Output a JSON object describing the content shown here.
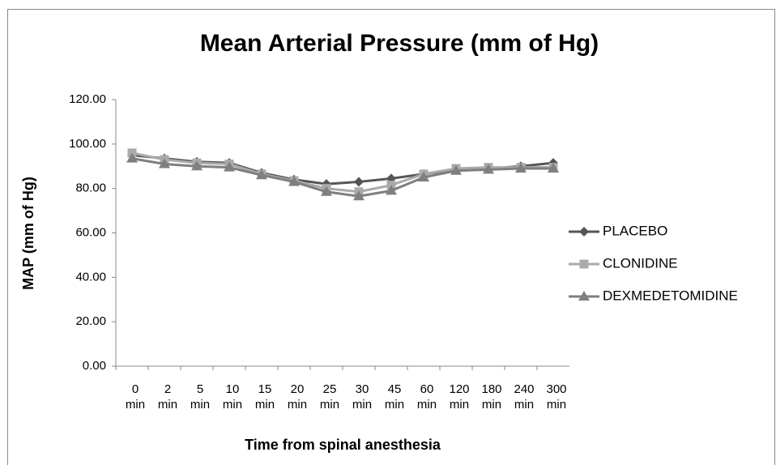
{
  "chart_data": {
    "type": "line",
    "title": "Mean Arterial Pressure (mm of Hg)",
    "x_label": "Time from spinal anesthesia",
    "y_label": "MAP (mm of Hg)",
    "categories": [
      "0 min",
      "2 min",
      "5 min",
      "10 min",
      "15 min",
      "20 min",
      "25 min",
      "30 min",
      "45 min",
      "60 min",
      "120 min",
      "180 min",
      "240 min",
      "300 min"
    ],
    "series": [
      {
        "name": "PLACEBO",
        "color": "#555555",
        "marker": "diamond",
        "values": [
          95,
          93.5,
          92,
          91.5,
          87,
          84,
          82,
          83,
          84.5,
          86.5,
          88.5,
          89,
          90,
          91.5
        ]
      },
      {
        "name": "CLONIDINE",
        "color": "#aaaaaa",
        "marker": "square",
        "values": [
          96,
          93,
          91.5,
          91,
          86.5,
          83.5,
          80,
          78.5,
          81.5,
          86.5,
          89,
          89.5,
          89.5,
          89.5
        ]
      },
      {
        "name": "DEXMEDETOMIDINE",
        "color": "#7f7f7f",
        "marker": "triangle",
        "values": [
          93.5,
          91,
          90,
          89.5,
          86,
          83,
          78.5,
          76.5,
          79,
          85,
          88,
          88.5,
          89,
          89
        ]
      }
    ],
    "ylim": [
      0,
      120
    ],
    "yticks": [
      {
        "value": 0,
        "label": "0.00"
      },
      {
        "value": 20,
        "label": "20.00"
      },
      {
        "value": 40,
        "label": "40.00"
      },
      {
        "value": 60,
        "label": "60.00"
      },
      {
        "value": 80,
        "label": "80.00"
      },
      {
        "value": 100,
        "label": "100.00"
      },
      {
        "value": 120,
        "label": "120.00"
      }
    ],
    "legend": "right"
  }
}
